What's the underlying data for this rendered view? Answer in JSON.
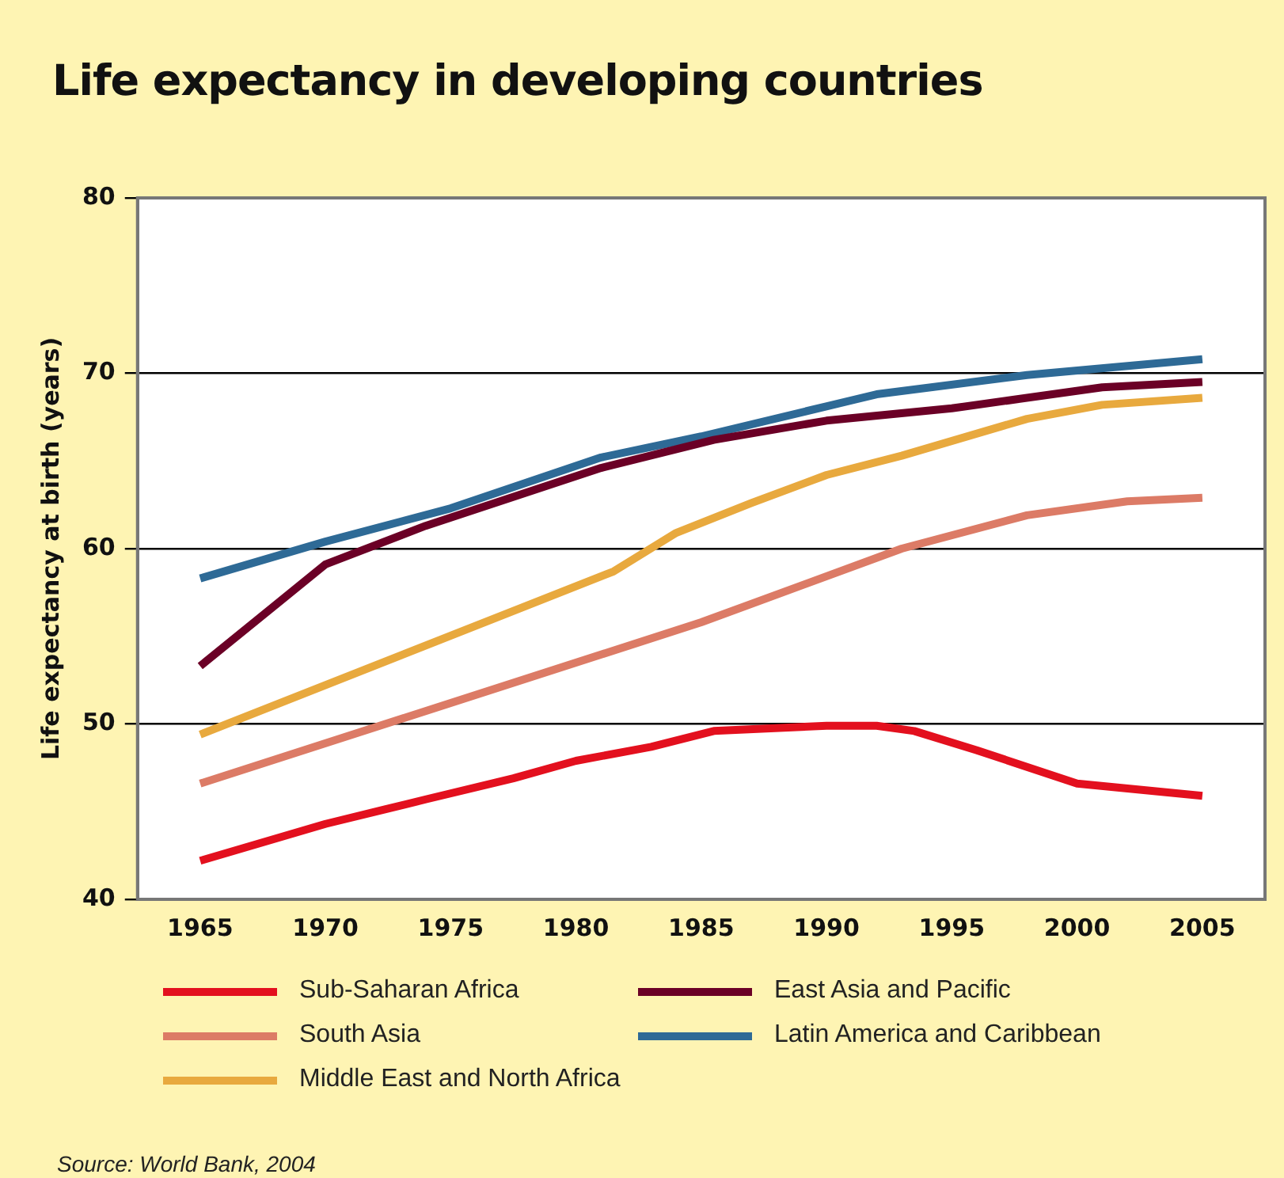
{
  "chart_data": {
    "type": "line",
    "title": "Life expectancy in developing countries",
    "ylabel": "Life expectancy at birth (years)",
    "xlim": [
      1962.5,
      2007.5
    ],
    "xticks": [
      1965,
      1970,
      1975,
      1980,
      1985,
      1990,
      1995,
      2000,
      2005
    ],
    "ylim": [
      40,
      80
    ],
    "yticks": [
      40,
      50,
      60,
      70,
      80
    ],
    "grid": "y",
    "legend": "bottom",
    "marker": "none",
    "line_style": "solid",
    "annotations": [
      "Source: World Bank, 2004"
    ],
    "series": [
      {
        "name": "Sub-Saharan Africa",
        "color": "#e3101e",
        "x": [
          1965,
          1970,
          1974,
          1977.5,
          1980,
          1983,
          1985.5,
          1990,
          1992,
          1993.5,
          1996,
          2000,
          2005
        ],
        "values": [
          42.2,
          44.3,
          45.7,
          46.9,
          47.9,
          48.7,
          49.6,
          49.9,
          49.9,
          49.6,
          48.5,
          46.6,
          45.9
        ]
      },
      {
        "name": "East Asia and Pacific",
        "color": "#6b0026",
        "x": [
          1965,
          1970,
          1974,
          1981,
          1985.5,
          1990,
          1995,
          2001,
          2005
        ],
        "values": [
          53.3,
          59.1,
          61.3,
          64.6,
          66.2,
          67.3,
          68.0,
          69.2,
          69.5
        ]
      },
      {
        "name": "South Asia",
        "color": "#dc7b66",
        "x": [
          1965,
          1985,
          1993,
          1998,
          2002,
          2005
        ],
        "values": [
          46.6,
          55.8,
          60.0,
          61.9,
          62.7,
          62.9
        ]
      },
      {
        "name": "Latin America and Caribbean",
        "color": "#2e6a96",
        "x": [
          1965,
          1970,
          1975,
          1981,
          1985,
          1992,
          1998,
          2005
        ],
        "values": [
          58.3,
          60.4,
          62.3,
          65.2,
          66.4,
          68.8,
          69.9,
          70.8
        ]
      },
      {
        "name": "Middle East and North Africa",
        "color": "#e8a93e",
        "x": [
          1965,
          1981.5,
          1984,
          1987,
          1990,
          1993,
          1998,
          2001,
          2005
        ],
        "values": [
          49.4,
          58.7,
          60.9,
          62.6,
          64.2,
          65.3,
          67.4,
          68.2,
          68.6
        ]
      }
    ]
  }
}
